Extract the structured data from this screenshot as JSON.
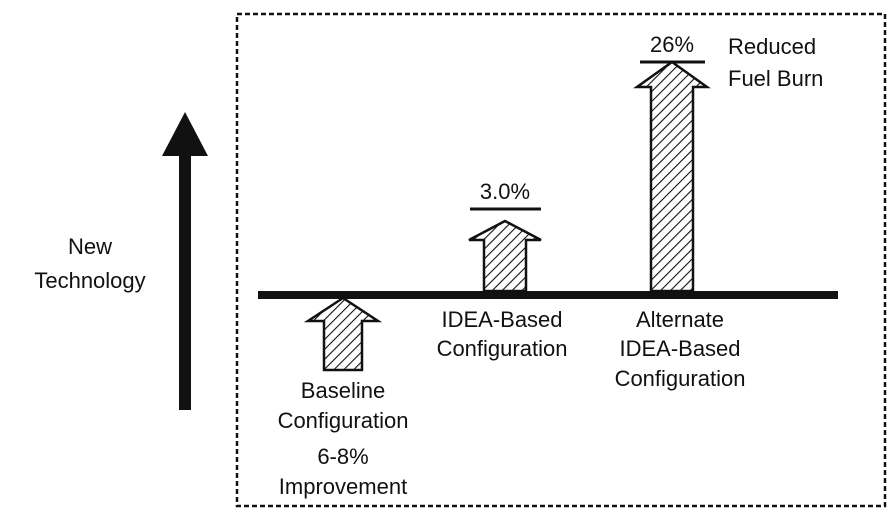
{
  "axis_label": [
    "New",
    "Technology"
  ],
  "options": [
    {
      "label": [
        "Baseline",
        "Configuration"
      ],
      "value_label": [
        "6-8%",
        "Improvement"
      ]
    },
    {
      "label": [
        "IDEA-Based",
        "Configuration"
      ],
      "value_label": "3.0%"
    },
    {
      "label": [
        "Alternate",
        "IDEA-Based",
        "Configuration"
      ],
      "value_label": "26%"
    }
  ],
  "legend": [
    "Reduced",
    "Fuel Burn"
  ]
}
